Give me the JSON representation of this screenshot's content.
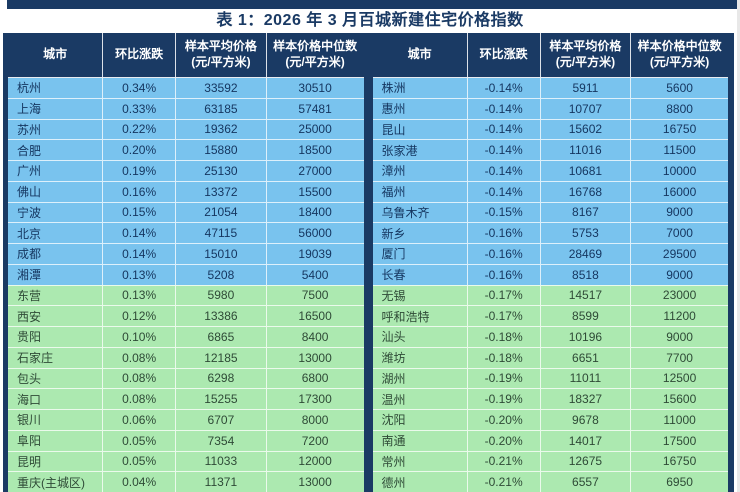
{
  "page": {
    "title": "表 1：2026 年 3 月百城新建住宅价格指数"
  },
  "columns": [
    {
      "label": "城市",
      "unit": ""
    },
    {
      "label": "环比涨跌",
      "unit": ""
    },
    {
      "label": "样本平均价格",
      "unit": "(元/平方米)"
    },
    {
      "label": "样本价格中位数",
      "unit": "(元/平方米)"
    }
  ],
  "colors": {
    "header_navy": "#1a3a64",
    "row_blue": "#79c3ee",
    "row_green": "#ace9b0",
    "header_text": "#ffffff",
    "row_blue_text": "#14355f",
    "row_green_text": "#2e4a36"
  },
  "tables": [
    {
      "name": "left",
      "rows": [
        {
          "city": "杭州",
          "mom": "0.34%",
          "avg": "33592",
          "median": "30510",
          "group": "blue"
        },
        {
          "city": "上海",
          "mom": "0.33%",
          "avg": "63185",
          "median": "57481",
          "group": "blue"
        },
        {
          "city": "苏州",
          "mom": "0.22%",
          "avg": "19362",
          "median": "25000",
          "group": "blue"
        },
        {
          "city": "合肥",
          "mom": "0.20%",
          "avg": "15880",
          "median": "18500",
          "group": "blue"
        },
        {
          "city": "广州",
          "mom": "0.19%",
          "avg": "25130",
          "median": "27000",
          "group": "blue"
        },
        {
          "city": "佛山",
          "mom": "0.16%",
          "avg": "13372",
          "median": "15500",
          "group": "blue"
        },
        {
          "city": "宁波",
          "mom": "0.15%",
          "avg": "21054",
          "median": "18400",
          "group": "blue"
        },
        {
          "city": "北京",
          "mom": "0.14%",
          "avg": "47115",
          "median": "56000",
          "group": "blue"
        },
        {
          "city": "成都",
          "mom": "0.14%",
          "avg": "15010",
          "median": "19039",
          "group": "blue"
        },
        {
          "city": "湘潭",
          "mom": "0.13%",
          "avg": "5208",
          "median": "5400",
          "group": "blue"
        },
        {
          "city": "东营",
          "mom": "0.13%",
          "avg": "5980",
          "median": "7500",
          "group": "green"
        },
        {
          "city": "西安",
          "mom": "0.12%",
          "avg": "13386",
          "median": "16500",
          "group": "green"
        },
        {
          "city": "贵阳",
          "mom": "0.10%",
          "avg": "6865",
          "median": "8400",
          "group": "green"
        },
        {
          "city": "石家庄",
          "mom": "0.08%",
          "avg": "12185",
          "median": "13000",
          "group": "green"
        },
        {
          "city": "包头",
          "mom": "0.08%",
          "avg": "6298",
          "median": "6800",
          "group": "green"
        },
        {
          "city": "海口",
          "mom": "0.08%",
          "avg": "15255",
          "median": "17300",
          "group": "green"
        },
        {
          "city": "银川",
          "mom": "0.06%",
          "avg": "6707",
          "median": "8000",
          "group": "green"
        },
        {
          "city": "阜阳",
          "mom": "0.05%",
          "avg": "7354",
          "median": "7200",
          "group": "green"
        },
        {
          "city": "昆明",
          "mom": "0.05%",
          "avg": "11033",
          "median": "12000",
          "group": "green"
        },
        {
          "city": "重庆(主城区)",
          "mom": "0.04%",
          "avg": "11371",
          "median": "13000",
          "group": "green"
        }
      ]
    },
    {
      "name": "right",
      "rows": [
        {
          "city": "株洲",
          "mom": "-0.14%",
          "avg": "5911",
          "median": "5600",
          "group": "blue"
        },
        {
          "city": "惠州",
          "mom": "-0.14%",
          "avg": "10707",
          "median": "8800",
          "group": "blue"
        },
        {
          "city": "昆山",
          "mom": "-0.14%",
          "avg": "15602",
          "median": "16750",
          "group": "blue"
        },
        {
          "city": "张家港",
          "mom": "-0.14%",
          "avg": "11016",
          "median": "11500",
          "group": "blue"
        },
        {
          "city": "漳州",
          "mom": "-0.14%",
          "avg": "10681",
          "median": "10000",
          "group": "blue"
        },
        {
          "city": "福州",
          "mom": "-0.14%",
          "avg": "16768",
          "median": "16000",
          "group": "blue"
        },
        {
          "city": "乌鲁木齐",
          "mom": "-0.15%",
          "avg": "8167",
          "median": "9000",
          "group": "blue"
        },
        {
          "city": "新乡",
          "mom": "-0.16%",
          "avg": "5753",
          "median": "7000",
          "group": "blue"
        },
        {
          "city": "厦门",
          "mom": "-0.16%",
          "avg": "28469",
          "median": "29500",
          "group": "blue"
        },
        {
          "city": "长春",
          "mom": "-0.16%",
          "avg": "8518",
          "median": "9000",
          "group": "blue"
        },
        {
          "city": "无锡",
          "mom": "-0.17%",
          "avg": "14517",
          "median": "23000",
          "group": "green"
        },
        {
          "city": "呼和浩特",
          "mom": "-0.17%",
          "avg": "8599",
          "median": "11200",
          "group": "green"
        },
        {
          "city": "汕头",
          "mom": "-0.18%",
          "avg": "10196",
          "median": "9000",
          "group": "green"
        },
        {
          "city": "潍坊",
          "mom": "-0.18%",
          "avg": "6651",
          "median": "7700",
          "group": "green"
        },
        {
          "city": "湖州",
          "mom": "-0.19%",
          "avg": "11011",
          "median": "12500",
          "group": "green"
        },
        {
          "city": "温州",
          "mom": "-0.19%",
          "avg": "18327",
          "median": "15600",
          "group": "green"
        },
        {
          "city": "沈阳",
          "mom": "-0.20%",
          "avg": "9678",
          "median": "11000",
          "group": "green"
        },
        {
          "city": "南通",
          "mom": "-0.20%",
          "avg": "14017",
          "median": "17500",
          "group": "green"
        },
        {
          "city": "常州",
          "mom": "-0.21%",
          "avg": "12675",
          "median": "16750",
          "group": "green"
        },
        {
          "city": "德州",
          "mom": "-0.21%",
          "avg": "6557",
          "median": "6950",
          "group": "green"
        }
      ]
    }
  ]
}
